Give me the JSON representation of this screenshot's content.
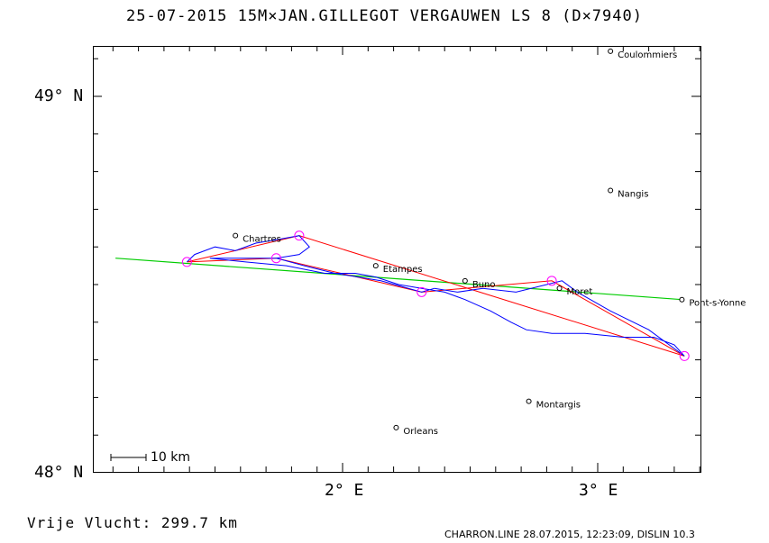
{
  "header": {
    "title": "25-07-2015   15M×JAN.GILLEGOT VERGAUWEN   LS 8 (D×7940)"
  },
  "axes": {
    "y_labels": [
      {
        "id": "lat-49",
        "text": "49° N",
        "lat": 49.0
      },
      {
        "id": "lat-48",
        "text": "48° N",
        "lat": 48.0
      }
    ],
    "x_labels": [
      {
        "id": "lon-2",
        "text": "2° E",
        "lon": 2.0
      },
      {
        "id": "lon-3",
        "text": "3° E",
        "lon": 3.0
      }
    ]
  },
  "scale_bar": {
    "label": "10 km"
  },
  "towns": [
    {
      "name": "Coulommiers",
      "lon": 3.05,
      "lat": 49.12
    },
    {
      "name": "Nangis",
      "lon": 3.05,
      "lat": 48.75
    },
    {
      "name": "Chartres",
      "lon": 1.58,
      "lat": 48.63
    },
    {
      "name": "Etampes",
      "lon": 2.13,
      "lat": 48.55
    },
    {
      "name": "Buno",
      "lon": 2.48,
      "lat": 48.51
    },
    {
      "name": "Moret",
      "lon": 2.85,
      "lat": 48.49
    },
    {
      "name": "Pont-s-Yonne",
      "lon": 3.33,
      "lat": 48.46
    },
    {
      "name": "Montargis",
      "lon": 2.73,
      "lat": 48.19
    },
    {
      "name": "Orleans",
      "lon": 2.21,
      "lat": 48.12
    }
  ],
  "colors": {
    "track": "#0000ff",
    "task": "#ff0000",
    "reference": "#00cc00",
    "turnpoint": "#ff00ff"
  },
  "footer": {
    "distance_label": "Vrije Vlucht:  299.7 km",
    "software": "CHARRON.LINE 28.07.2015, 12:23:09, DISLIN 10.3"
  },
  "map_data": {
    "turnpoints": [
      {
        "lon": 1.39,
        "lat": 48.56
      },
      {
        "lon": 1.83,
        "lat": 48.63
      },
      {
        "lon": 1.74,
        "lat": 48.57
      },
      {
        "lon": 2.31,
        "lat": 48.48
      },
      {
        "lon": 2.82,
        "lat": 48.51
      },
      {
        "lon": 3.34,
        "lat": 48.31
      }
    ],
    "task_route": [
      {
        "lon": 1.39,
        "lat": 48.56
      },
      {
        "lon": 1.83,
        "lat": 48.63
      },
      {
        "lon": 3.34,
        "lat": 48.31
      },
      {
        "lon": 2.82,
        "lat": 48.51
      },
      {
        "lon": 2.31,
        "lat": 48.48
      },
      {
        "lon": 1.74,
        "lat": 48.57
      },
      {
        "lon": 1.39,
        "lat": 48.56
      }
    ],
    "reference_line": [
      {
        "lon": 1.11,
        "lat": 48.57
      },
      {
        "lon": 3.33,
        "lat": 48.46
      }
    ],
    "flight_track": [
      {
        "lon": 1.39,
        "lat": 48.56
      },
      {
        "lon": 1.42,
        "lat": 48.58
      },
      {
        "lon": 1.5,
        "lat": 48.6
      },
      {
        "lon": 1.58,
        "lat": 48.59
      },
      {
        "lon": 1.66,
        "lat": 48.61
      },
      {
        "lon": 1.75,
        "lat": 48.62
      },
      {
        "lon": 1.83,
        "lat": 48.63
      },
      {
        "lon": 1.87,
        "lat": 48.6
      },
      {
        "lon": 1.83,
        "lat": 48.58
      },
      {
        "lon": 1.74,
        "lat": 48.57
      },
      {
        "lon": 1.6,
        "lat": 48.57
      },
      {
        "lon": 1.48,
        "lat": 48.57
      },
      {
        "lon": 1.62,
        "lat": 48.56
      },
      {
        "lon": 1.78,
        "lat": 48.55
      },
      {
        "lon": 1.93,
        "lat": 48.53
      },
      {
        "lon": 2.05,
        "lat": 48.53
      },
      {
        "lon": 2.13,
        "lat": 48.52
      },
      {
        "lon": 2.22,
        "lat": 48.5
      },
      {
        "lon": 2.31,
        "lat": 48.49
      },
      {
        "lon": 2.4,
        "lat": 48.48
      },
      {
        "lon": 2.48,
        "lat": 48.46
      },
      {
        "lon": 2.58,
        "lat": 48.43
      },
      {
        "lon": 2.66,
        "lat": 48.4
      },
      {
        "lon": 2.72,
        "lat": 48.38
      },
      {
        "lon": 2.82,
        "lat": 48.37
      },
      {
        "lon": 2.95,
        "lat": 48.37
      },
      {
        "lon": 3.1,
        "lat": 48.36
      },
      {
        "lon": 3.22,
        "lat": 48.36
      },
      {
        "lon": 3.3,
        "lat": 48.34
      },
      {
        "lon": 3.34,
        "lat": 48.31
      },
      {
        "lon": 3.2,
        "lat": 48.38
      },
      {
        "lon": 3.05,
        "lat": 48.43
      },
      {
        "lon": 2.92,
        "lat": 48.48
      },
      {
        "lon": 2.86,
        "lat": 48.51
      },
      {
        "lon": 2.8,
        "lat": 48.5
      },
      {
        "lon": 2.68,
        "lat": 48.48
      },
      {
        "lon": 2.55,
        "lat": 48.49
      },
      {
        "lon": 2.45,
        "lat": 48.48
      },
      {
        "lon": 2.36,
        "lat": 48.49
      },
      {
        "lon": 2.31,
        "lat": 48.48
      },
      {
        "lon": 2.15,
        "lat": 48.51
      },
      {
        "lon": 1.97,
        "lat": 48.53
      },
      {
        "lon": 1.85,
        "lat": 48.55
      },
      {
        "lon": 1.74,
        "lat": 48.57
      }
    ]
  }
}
